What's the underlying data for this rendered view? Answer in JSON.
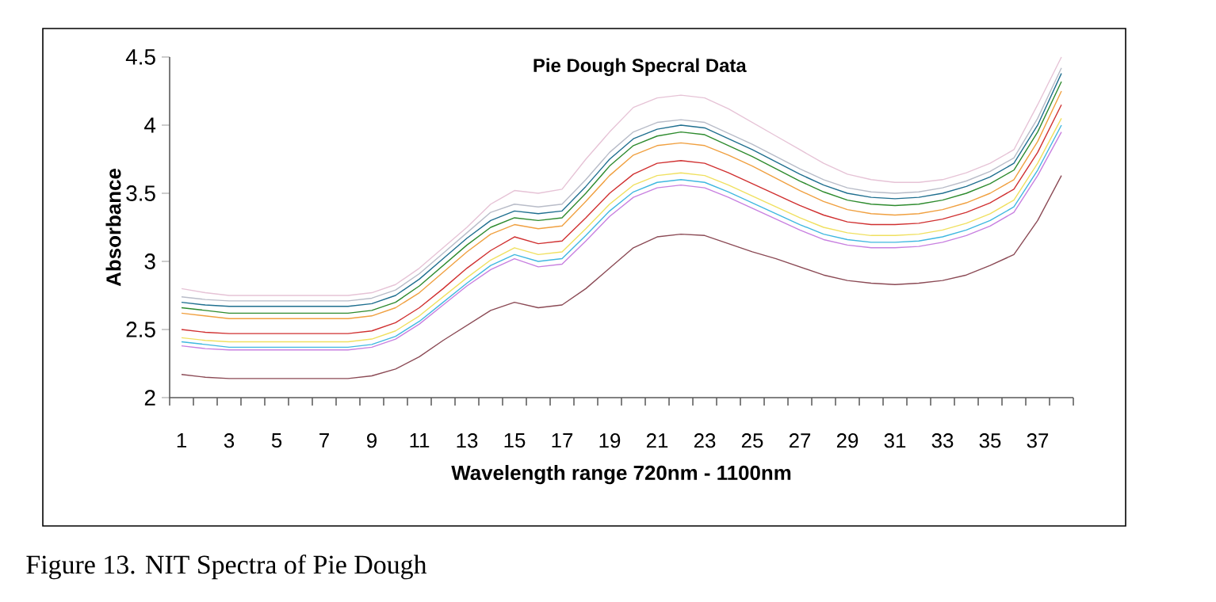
{
  "chart_data": {
    "type": "line",
    "title": "Pie Dough Specral Data",
    "xlabel": "Wavelength range  720nm - 1100nm",
    "ylabel": "Absorbance",
    "annotations": [
      "Figure 13. NIT Spectra of Pie Dough"
    ],
    "categories": [
      "1",
      null,
      "3",
      null,
      "5",
      null,
      "7",
      null,
      "9",
      null,
      "11",
      null,
      "13",
      null,
      "15",
      null,
      "17",
      null,
      "19",
      null,
      "21",
      null,
      "23",
      null,
      "25",
      null,
      "27",
      null,
      "29",
      null,
      "31",
      null,
      "33",
      null,
      "35",
      null,
      "37",
      null
    ],
    "ylim": [
      2,
      4.5
    ],
    "yticks": [
      2,
      2.5,
      3,
      3.5,
      4,
      4.5
    ],
    "series": [
      {
        "color": "#e6c3d6",
        "values": [
          2.8,
          2.77,
          2.75,
          2.75,
          2.75,
          2.75,
          2.75,
          2.75,
          2.77,
          2.83,
          2.95,
          3.1,
          3.25,
          3.42,
          3.52,
          3.5,
          3.53,
          3.75,
          3.95,
          4.13,
          4.2,
          4.22,
          4.2,
          4.12,
          4.02,
          3.92,
          3.82,
          3.72,
          3.64,
          3.6,
          3.58,
          3.58,
          3.6,
          3.65,
          3.72,
          3.82,
          4.15,
          4.5
        ]
      },
      {
        "color": "#b8bcc8",
        "values": [
          2.74,
          2.72,
          2.71,
          2.71,
          2.71,
          2.71,
          2.71,
          2.71,
          2.73,
          2.79,
          2.91,
          3.06,
          3.21,
          3.36,
          3.42,
          3.4,
          3.42,
          3.6,
          3.8,
          3.95,
          4.02,
          4.04,
          4.02,
          3.94,
          3.86,
          3.77,
          3.68,
          3.6,
          3.54,
          3.51,
          3.5,
          3.51,
          3.54,
          3.59,
          3.66,
          3.76,
          4.05,
          4.42
        ]
      },
      {
        "color": "#1f6f8f",
        "values": [
          2.7,
          2.68,
          2.67,
          2.67,
          2.67,
          2.67,
          2.67,
          2.67,
          2.69,
          2.75,
          2.87,
          3.02,
          3.17,
          3.3,
          3.37,
          3.35,
          3.37,
          3.55,
          3.75,
          3.9,
          3.97,
          4.0,
          3.98,
          3.9,
          3.82,
          3.73,
          3.64,
          3.56,
          3.5,
          3.47,
          3.46,
          3.47,
          3.5,
          3.55,
          3.62,
          3.72,
          4.0,
          4.38
        ]
      },
      {
        "color": "#2e8b2e",
        "values": [
          2.66,
          2.64,
          2.62,
          2.62,
          2.62,
          2.62,
          2.62,
          2.62,
          2.64,
          2.7,
          2.82,
          2.97,
          3.12,
          3.25,
          3.32,
          3.3,
          3.32,
          3.5,
          3.7,
          3.85,
          3.92,
          3.95,
          3.93,
          3.85,
          3.77,
          3.68,
          3.59,
          3.51,
          3.45,
          3.42,
          3.41,
          3.42,
          3.45,
          3.5,
          3.57,
          3.67,
          3.95,
          4.32
        ]
      },
      {
        "color": "#f0a040",
        "values": [
          2.62,
          2.6,
          2.58,
          2.58,
          2.58,
          2.58,
          2.58,
          2.58,
          2.6,
          2.66,
          2.77,
          2.92,
          3.07,
          3.2,
          3.27,
          3.24,
          3.26,
          3.44,
          3.63,
          3.78,
          3.85,
          3.87,
          3.85,
          3.78,
          3.7,
          3.61,
          3.52,
          3.44,
          3.38,
          3.35,
          3.34,
          3.35,
          3.38,
          3.43,
          3.5,
          3.6,
          3.88,
          4.25
        ]
      },
      {
        "color": "#d03030",
        "values": [
          2.5,
          2.48,
          2.47,
          2.47,
          2.47,
          2.47,
          2.47,
          2.47,
          2.49,
          2.55,
          2.66,
          2.8,
          2.95,
          3.08,
          3.18,
          3.13,
          3.15,
          3.32,
          3.5,
          3.64,
          3.72,
          3.74,
          3.72,
          3.65,
          3.57,
          3.49,
          3.41,
          3.34,
          3.29,
          3.27,
          3.27,
          3.28,
          3.31,
          3.36,
          3.43,
          3.53,
          3.8,
          4.15
        ]
      },
      {
        "color": "#f0e060",
        "values": [
          2.44,
          2.42,
          2.41,
          2.41,
          2.41,
          2.41,
          2.41,
          2.41,
          2.43,
          2.49,
          2.6,
          2.74,
          2.88,
          3.01,
          3.1,
          3.05,
          3.07,
          3.24,
          3.42,
          3.56,
          3.63,
          3.65,
          3.63,
          3.56,
          3.48,
          3.4,
          3.32,
          3.25,
          3.21,
          3.19,
          3.19,
          3.2,
          3.23,
          3.28,
          3.35,
          3.45,
          3.72,
          4.05
        ]
      },
      {
        "color": "#40b8e0",
        "values": [
          2.41,
          2.39,
          2.37,
          2.37,
          2.37,
          2.37,
          2.37,
          2.37,
          2.39,
          2.45,
          2.56,
          2.7,
          2.84,
          2.97,
          3.05,
          3.0,
          3.02,
          3.19,
          3.37,
          3.51,
          3.58,
          3.6,
          3.58,
          3.51,
          3.43,
          3.35,
          3.27,
          3.2,
          3.16,
          3.14,
          3.14,
          3.15,
          3.18,
          3.23,
          3.3,
          3.4,
          3.67,
          4.0
        ]
      },
      {
        "color": "#c880e0",
        "values": [
          2.38,
          2.36,
          2.35,
          2.35,
          2.35,
          2.35,
          2.35,
          2.35,
          2.37,
          2.43,
          2.54,
          2.68,
          2.82,
          2.94,
          3.02,
          2.96,
          2.98,
          3.15,
          3.33,
          3.47,
          3.54,
          3.56,
          3.54,
          3.47,
          3.39,
          3.31,
          3.23,
          3.16,
          3.12,
          3.1,
          3.1,
          3.11,
          3.14,
          3.19,
          3.26,
          3.36,
          3.63,
          3.95
        ]
      },
      {
        "color": "#8b4a55",
        "values": [
          2.17,
          2.15,
          2.14,
          2.14,
          2.14,
          2.14,
          2.14,
          2.14,
          2.16,
          2.21,
          2.3,
          2.42,
          2.53,
          2.64,
          2.7,
          2.66,
          2.68,
          2.8,
          2.95,
          3.1,
          3.18,
          3.2,
          3.19,
          3.13,
          3.07,
          3.02,
          2.96,
          2.9,
          2.86,
          2.84,
          2.83,
          2.84,
          2.86,
          2.9,
          2.97,
          3.05,
          3.3,
          3.63
        ]
      }
    ]
  }
}
